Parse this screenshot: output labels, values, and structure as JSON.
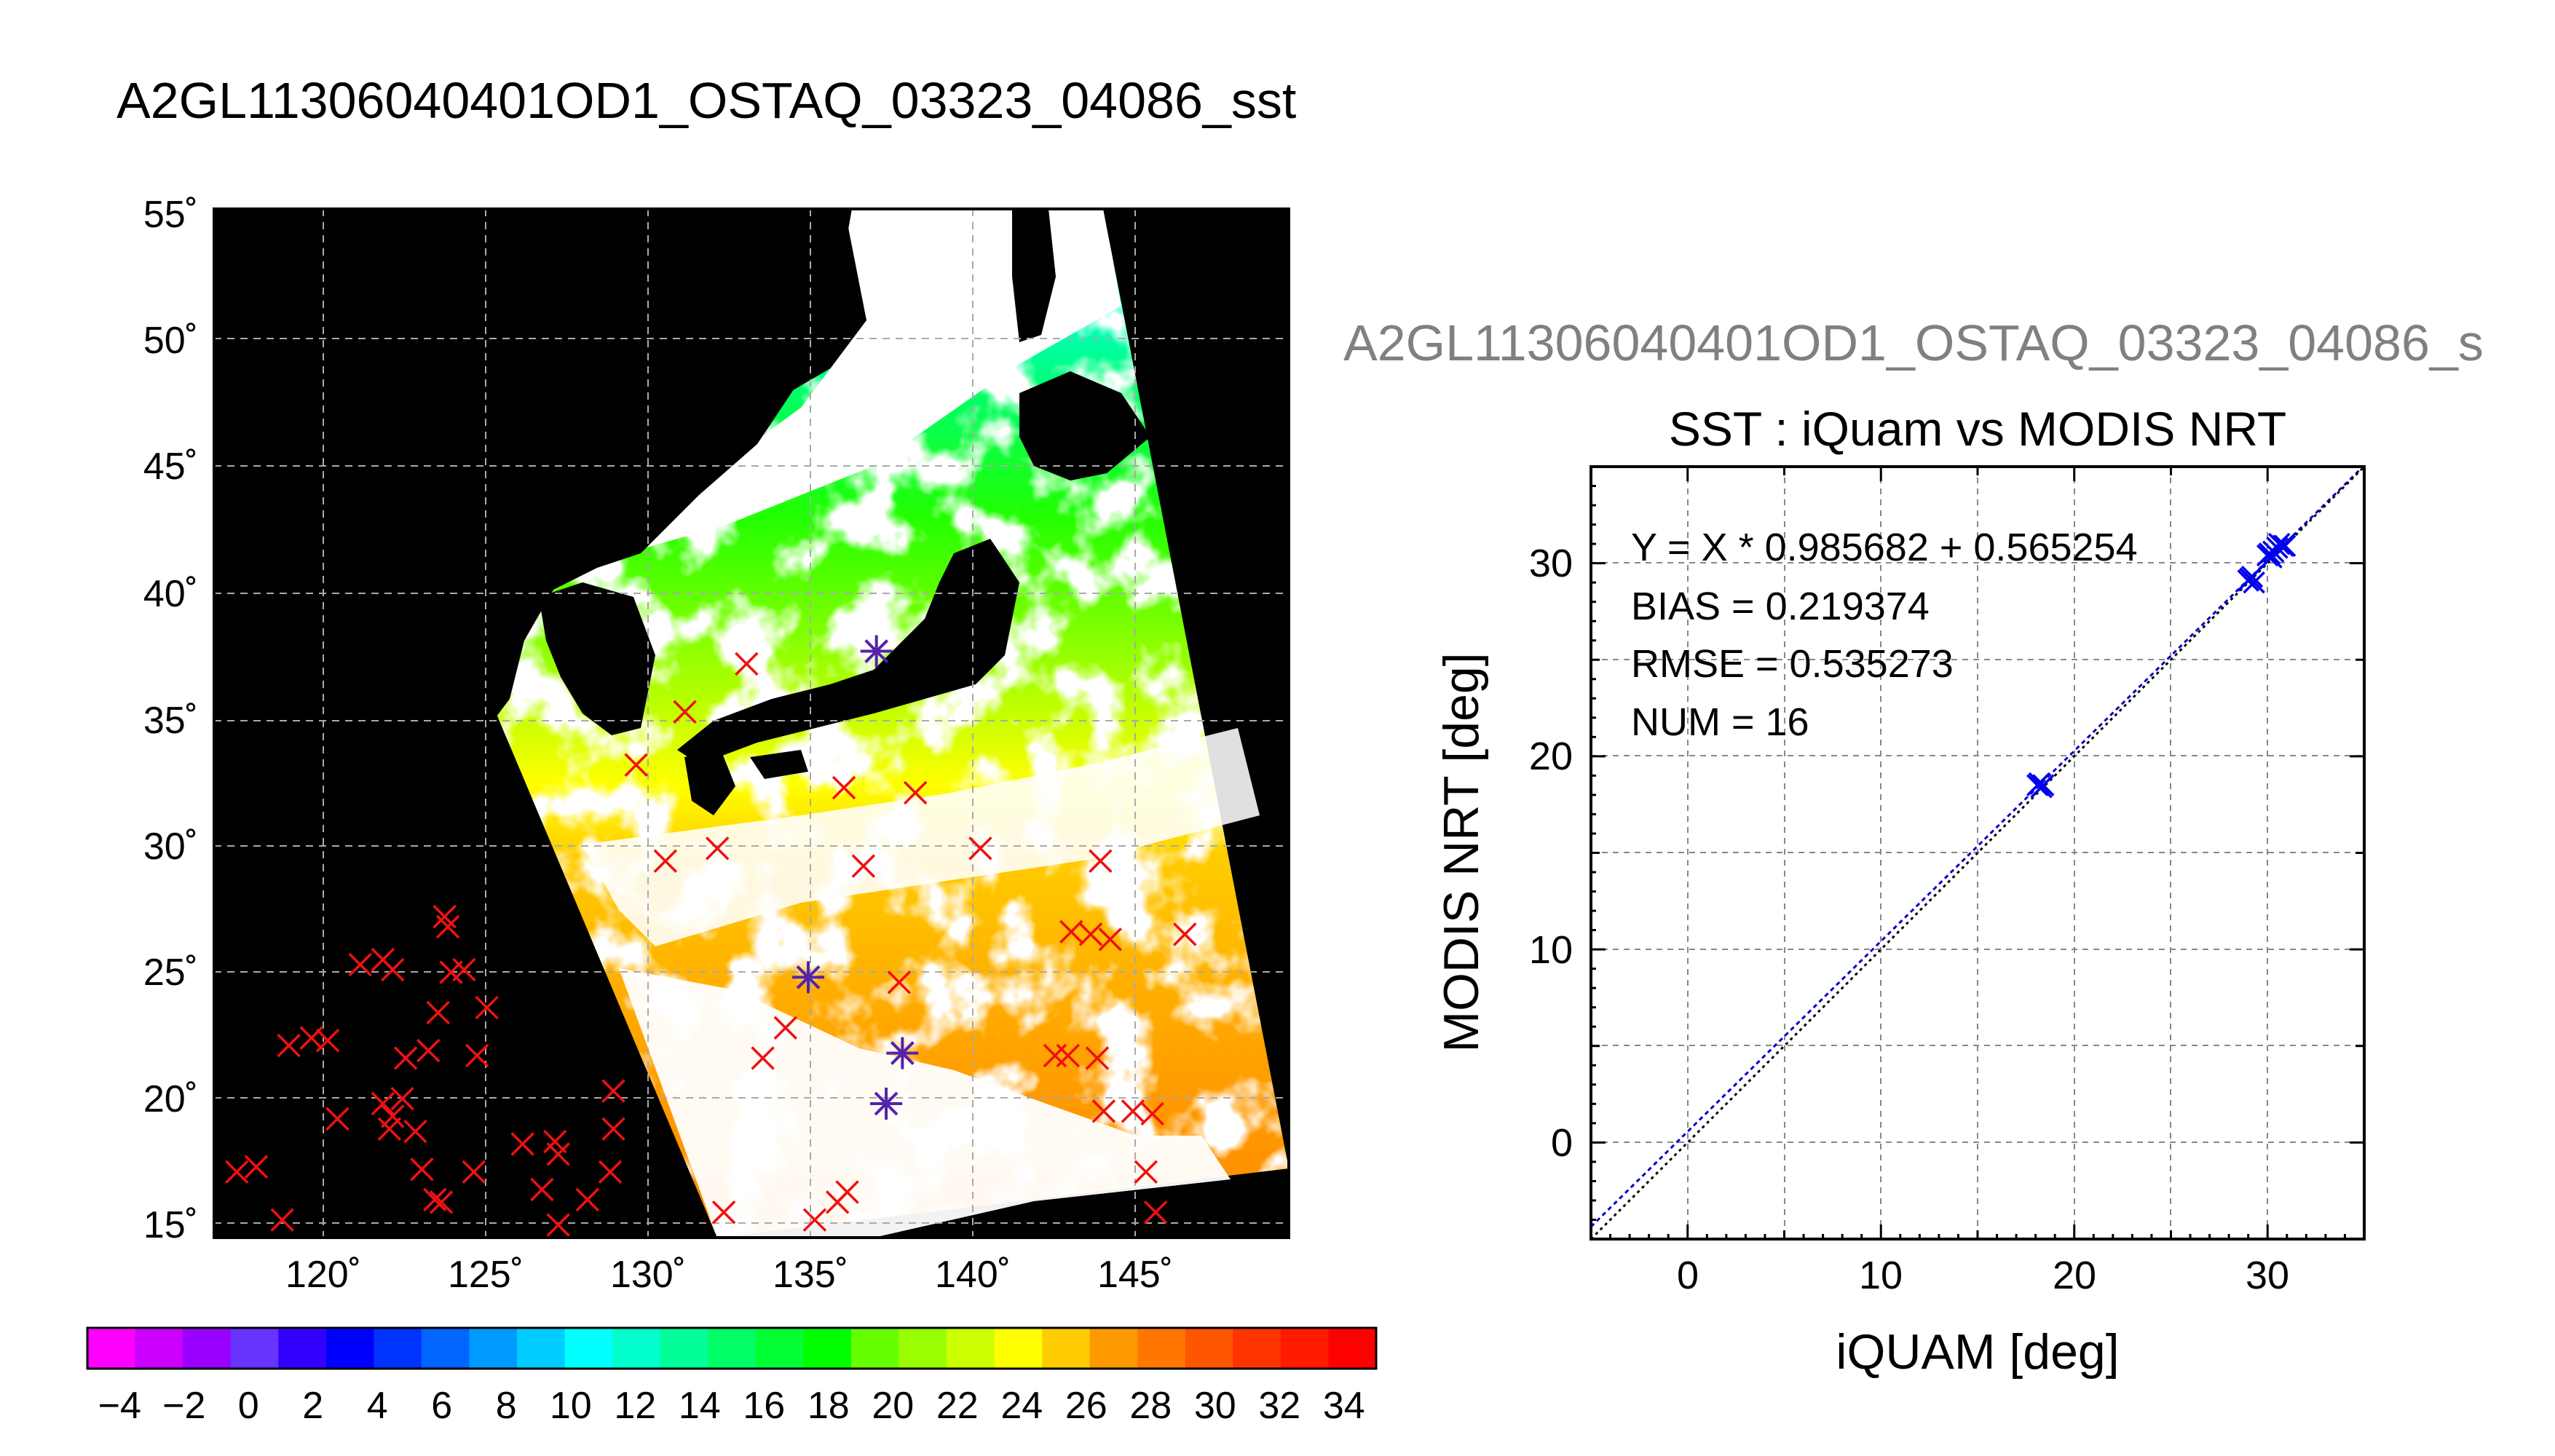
{
  "main_title": "A2GL11306040401OD1_OSTAQ_03323_04086_sst",
  "map": {
    "lat_labels": [
      "55˚",
      "50˚",
      "45˚",
      "40˚",
      "35˚",
      "30˚",
      "25˚",
      "20˚",
      "15˚"
    ],
    "lon_labels": [
      "120˚",
      "125˚",
      "130˚",
      "135˚",
      "140˚",
      "145˚"
    ]
  },
  "colorbar": {
    "tick_labels": [
      "−4",
      "−2",
      "0",
      "2",
      "4",
      "6",
      "8",
      "10",
      "12",
      "14",
      "16",
      "18",
      "20",
      "22",
      "24",
      "26",
      "28",
      "30",
      "32",
      "34"
    ],
    "colors": [
      "#ff00ff",
      "#cc00ff",
      "#9900ff",
      "#6633ff",
      "#3300ff",
      "#0000ff",
      "#0033ff",
      "#0066ff",
      "#0099ff",
      "#00ccff",
      "#00ffff",
      "#00ffcc",
      "#00ff99",
      "#00ff66",
      "#00ff33",
      "#00ff00",
      "#66ff00",
      "#99ff00",
      "#ccff00",
      "#ffff00",
      "#ffcc00",
      "#ff9900",
      "#ff7700",
      "#ff5500",
      "#ff3300",
      "#ff1a00",
      "#ff0000"
    ]
  },
  "scatter": {
    "top_title": "A2GL11306040401OD1_OSTAQ_03323_04086_s",
    "title": "SST : iQuam vs MODIS NRT",
    "stats": {
      "fit": "Y = X * 0.985682 + 0.565254",
      "bias": "BIAS = 0.219374",
      "rmse": "RMSE = 0.535273",
      "num": "NUM = 16"
    },
    "xlabel": "iQUAM [deg]",
    "ylabel": "MODIS NRT [deg]",
    "ticks": [
      "0",
      "10",
      "20",
      "30"
    ]
  },
  "chart_data": [
    {
      "type": "heatmap",
      "title": "A2GL11306040401OD1_OSTAQ_03323_04086_sst",
      "x_ticks": [
        "120˚",
        "125˚",
        "130˚",
        "135˚",
        "140˚",
        "145˚"
      ],
      "y_ticks": [
        "55˚",
        "50˚",
        "45˚",
        "40˚",
        "35˚",
        "30˚",
        "25˚",
        "20˚",
        "15˚"
      ],
      "xlim": [
        116.7,
        149.8
      ],
      "ylim": [
        14.5,
        55.2
      ],
      "colorbar_range": [
        -5,
        35
      ],
      "colorbar_ticks": [
        -4,
        -2,
        0,
        2,
        4,
        6,
        8,
        10,
        12,
        14,
        16,
        18,
        20,
        22,
        24,
        26,
        28,
        30,
        32,
        34
      ],
      "ocean_marks": [
        [
          133.1,
          37.2
        ],
        [
          131.2,
          35.3
        ],
        [
          129.7,
          33.2
        ],
        [
          136.1,
          32.3
        ],
        [
          138.3,
          32.1
        ],
        [
          130.6,
          29.4
        ],
        [
          132.2,
          29.9
        ],
        [
          136.7,
          29.2
        ],
        [
          140.3,
          29.9
        ],
        [
          144.0,
          29.4
        ],
        [
          143.1,
          26.6
        ],
        [
          143.7,
          26.5
        ],
        [
          144.3,
          26.3
        ],
        [
          146.6,
          26.5
        ],
        [
          137.8,
          24.6
        ],
        [
          134.3,
          22.8
        ],
        [
          133.6,
          21.6
        ],
        [
          142.6,
          21.7
        ],
        [
          143.0,
          21.7
        ],
        [
          143.9,
          21.6
        ],
        [
          144.1,
          19.5
        ],
        [
          145.0,
          19.5
        ],
        [
          145.6,
          19.4
        ],
        [
          145.4,
          17.1
        ],
        [
          145.7,
          15.5
        ],
        [
          135.9,
          15.9
        ],
        [
          135.2,
          15.2
        ],
        [
          132.4,
          15.5
        ],
        [
          136.2,
          16.3
        ],
        [
          117.4,
          17.1
        ],
        [
          118.0,
          17.3
        ],
        [
          118.8,
          15.2
        ],
        [
          119.0,
          22.1
        ],
        [
          119.7,
          22.4
        ],
        [
          120.2,
          22.3
        ],
        [
          120.5,
          19.2
        ],
        [
          121.2,
          25.3
        ],
        [
          121.9,
          25.5
        ],
        [
          122.2,
          25.1
        ],
        [
          121.9,
          19.8
        ],
        [
          122.2,
          19.3
        ],
        [
          122.1,
          18.8
        ],
        [
          122.5,
          20.0
        ],
        [
          122.6,
          21.6
        ],
        [
          122.9,
          18.7
        ],
        [
          123.1,
          17.2
        ],
        [
          123.5,
          16.0
        ],
        [
          123.7,
          15.9
        ],
        [
          123.3,
          21.9
        ],
        [
          123.6,
          23.4
        ],
        [
          123.8,
          27.2
        ],
        [
          123.9,
          26.8
        ],
        [
          124.0,
          25.0
        ],
        [
          124.4,
          25.1
        ],
        [
          124.8,
          21.7
        ],
        [
          124.7,
          17.1
        ],
        [
          125.1,
          23.6
        ],
        [
          126.2,
          18.2
        ],
        [
          126.8,
          16.4
        ],
        [
          127.2,
          18.3
        ],
        [
          127.3,
          17.8
        ],
        [
          127.3,
          15.0
        ],
        [
          128.2,
          16.0
        ],
        [
          128.9,
          17.1
        ],
        [
          129.0,
          18.8
        ],
        [
          129.0,
          20.3
        ]
      ],
      "in_situ_points": [
        [
          137.1,
          37.7
        ],
        [
          135.0,
          24.8
        ],
        [
          137.9,
          21.8
        ],
        [
          137.4,
          19.8
        ]
      ]
    },
    {
      "type": "scatter",
      "title": "SST : iQuam vs MODIS NRT",
      "xlabel": "iQUAM [deg]",
      "ylabel": "MODIS NRT [deg]",
      "xlim": [
        -5,
        35
      ],
      "ylim": [
        -5,
        35
      ],
      "x_ticks": [
        0,
        10,
        20,
        30
      ],
      "y_ticks": [
        0,
        10,
        20,
        30
      ],
      "grid": true,
      "series": [
        {
          "values": [
            [
              18.2,
              18.6
            ],
            [
              18.3,
              18.4
            ],
            [
              29.1,
              29.2
            ],
            [
              29.3,
              29.0
            ],
            [
              30.0,
              30.4
            ],
            [
              30.2,
              30.3
            ],
            [
              30.6,
              31.0
            ],
            [
              30.9,
              30.9
            ],
            [
              29.0,
              29.1
            ],
            [
              30.1,
              30.5
            ],
            [
              30.5,
              30.8
            ],
            [
              18.1,
              18.5
            ],
            [
              29.2,
              29.3
            ],
            [
              30.3,
              30.6
            ],
            [
              30.8,
              30.9
            ],
            [
              18.4,
              18.5
            ]
          ]
        }
      ],
      "reference_lines": [
        {
          "slope": 0.985682,
          "intercept": 0.565254
        },
        {
          "slope": 1,
          "intercept": 0
        }
      ],
      "stats": {
        "slope": 0.985682,
        "intercept": 0.565254,
        "bias": 0.219374,
        "rmse": 0.535273,
        "num": 16
      }
    }
  ]
}
